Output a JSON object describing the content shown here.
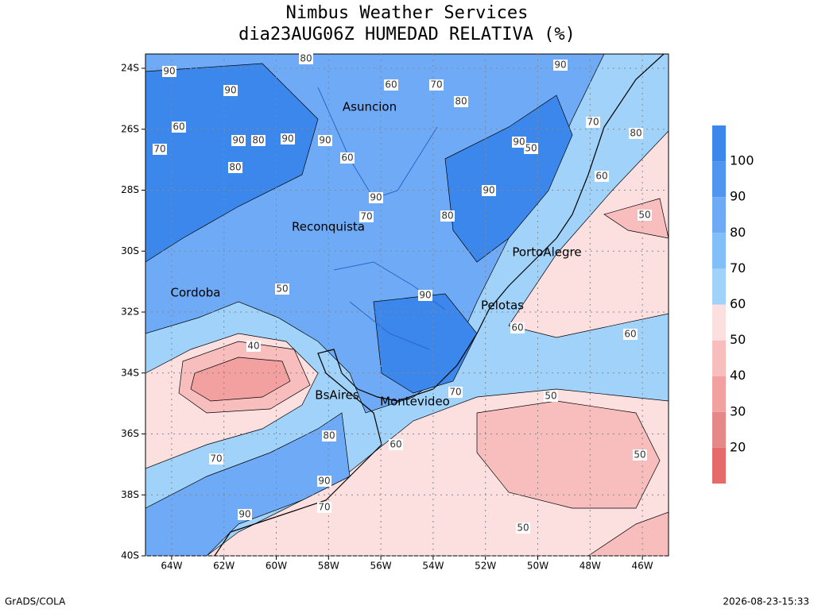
{
  "title": [
    "Nimbus Weather Services",
    "dia23AUG06Z HUMEDAD RELATIVA (%)"
  ],
  "lon_ticks": [
    {
      "value": -64,
      "label": "64W"
    },
    {
      "value": -62,
      "label": "62W"
    },
    {
      "value": -60,
      "label": "60W"
    },
    {
      "value": -58,
      "label": "58W"
    },
    {
      "value": -56,
      "label": "56W"
    },
    {
      "value": -54,
      "label": "54W"
    },
    {
      "value": -52,
      "label": "52W"
    },
    {
      "value": -50,
      "label": "50W"
    },
    {
      "value": -48,
      "label": "48W"
    },
    {
      "value": -46,
      "label": "46W"
    }
  ],
  "lat_ticks": [
    {
      "value": -24,
      "label": "24S"
    },
    {
      "value": -26,
      "label": "26S"
    },
    {
      "value": -28,
      "label": "28S"
    },
    {
      "value": -30,
      "label": "30S"
    },
    {
      "value": -32,
      "label": "32S"
    },
    {
      "value": -34,
      "label": "34S"
    },
    {
      "value": -36,
      "label": "36S"
    },
    {
      "value": -38,
      "label": "38S"
    },
    {
      "value": -40,
      "label": "40S"
    }
  ],
  "cities": [
    "Asuncion",
    "Reconquista",
    "PortoAlegre",
    "Cordoba",
    "Pelotas",
    "BsAires",
    "Montevideo"
  ],
  "contour_labels": [
    90,
    80,
    90,
    60,
    90,
    80,
    70,
    80,
    90,
    90,
    60,
    90,
    70,
    80,
    90,
    80,
    90,
    70,
    60,
    50,
    40,
    50,
    70,
    80,
    60,
    90,
    90,
    70,
    60,
    50,
    60,
    50,
    50,
    50,
    70,
    90,
    80,
    70,
    90,
    60
  ],
  "colorbar": {
    "levels": [
      20,
      30,
      40,
      50,
      60,
      70,
      80,
      90,
      100
    ],
    "colors": [
      "#e66a6a",
      "#e68888",
      "#f2a0a0",
      "#f8bebe",
      "#fce0e0",
      "#a0d2fa",
      "#82bef8",
      "#6eaaf5",
      "#5096f0",
      "#3c87ec"
    ]
  },
  "footer": {
    "left": "GrADS/COLA",
    "right": "2026-08-23-15:33"
  }
}
